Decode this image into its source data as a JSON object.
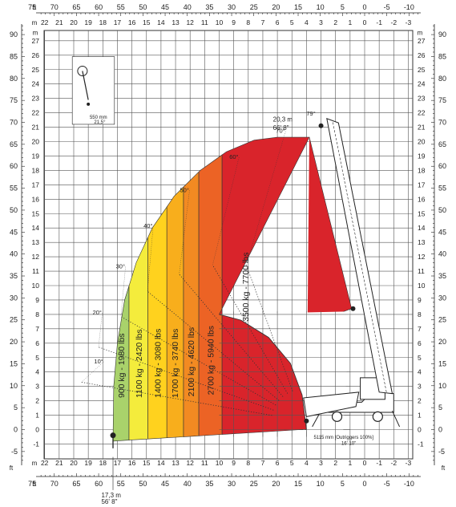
{
  "chart_data": {
    "type": "load-chart",
    "top_ft_ticks": [
      "75",
      "70",
      "65",
      "60",
      "55",
      "50",
      "45",
      "40",
      "35",
      "30",
      "25",
      "20",
      "15",
      "10",
      "5",
      "0",
      "-5",
      "-10"
    ],
    "top_m_ticks": [
      "22",
      "21",
      "20",
      "19",
      "18",
      "17",
      "16",
      "15",
      "14",
      "13",
      "12",
      "11",
      "10",
      "9",
      "8",
      "7",
      "6",
      "5",
      "4",
      "3",
      "2",
      "1",
      "0",
      "-1",
      "-2",
      "-3"
    ],
    "left_m_ticks": [
      "27",
      "26",
      "25",
      "24",
      "23",
      "22",
      "21",
      "20",
      "19",
      "18",
      "17",
      "16",
      "15",
      "14",
      "13",
      "12",
      "11",
      "10",
      "9",
      "8",
      "7",
      "6",
      "5",
      "4",
      "3",
      "2",
      "1",
      "0",
      "-1"
    ],
    "left_ft_ticks": [
      "90",
      "85",
      "80",
      "75",
      "70",
      "65",
      "60",
      "55",
      "50",
      "45",
      "40",
      "35",
      "30",
      "25",
      "20",
      "15",
      "10",
      "5",
      "0",
      "-5"
    ],
    "axis_unit_ft": "ft",
    "axis_unit_m": "m",
    "zones": [
      {
        "label": "900 kg - 1980 lbs",
        "color": "#a9d26b"
      },
      {
        "label": "1100 kg - 2420 lbs",
        "color": "#f4ec3c"
      },
      {
        "label": "1400 kg - 3080 lbs",
        "color": "#ffd21e"
      },
      {
        "label": "1700 kg - 3740 lbs",
        "color": "#f8ae1c"
      },
      {
        "label": "2100 kg - 4620 lbs",
        "color": "#f28a22"
      },
      {
        "label": "2700 kg - 5940 lbs",
        "color": "#ec6325"
      },
      {
        "label": "3500 kg - 7700 lbs",
        "color": "#d9242b"
      }
    ],
    "angles": [
      "10°",
      "20°",
      "30°",
      "40°",
      "50°",
      "60°",
      "70°",
      "79°"
    ],
    "max_height": {
      "metric": "20,3 m",
      "imperial": "66' 8\""
    },
    "max_reach": {
      "metric": "17,3 m",
      "imperial": "56' 8\""
    },
    "outriggers": {
      "metric": "5115 mm [Outriggers 100%]",
      "imperial": "16' 10\""
    },
    "inset": {
      "metric": "550 mm",
      "angle": "21,5°"
    }
  }
}
